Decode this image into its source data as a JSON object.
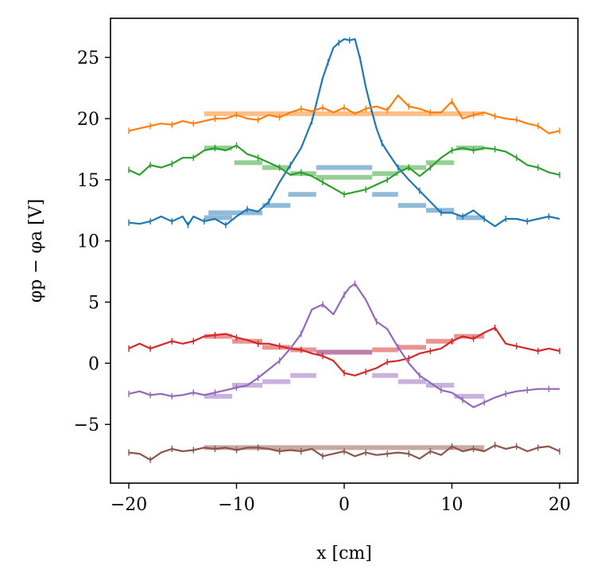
{
  "chart_data": {
    "type": "line",
    "title": "",
    "xlabel": "x [cm]",
    "ylabel": "φp − φa [V]",
    "xlim": [
      -21.7,
      21.7
    ],
    "ylim": [
      -9.8,
      28.2
    ],
    "xticks": [
      -20,
      -10,
      0,
      10,
      20
    ],
    "xtick_labels": [
      "−20",
      "−10",
      "0",
      "10",
      "20"
    ],
    "yticks": [
      -5,
      0,
      5,
      10,
      15,
      20,
      25
    ],
    "ytick_labels": [
      "−5",
      "0",
      "5",
      "10",
      "15",
      "20",
      "25"
    ],
    "grid": false,
    "legend": "none",
    "series": [
      {
        "name": "blue",
        "color": "#1f77b4",
        "x": [
          -20,
          -19,
          -18,
          -17,
          -16,
          -15,
          -14.5,
          -14,
          -13,
          -12,
          -11,
          -10,
          -9,
          -8,
          -7,
          -6,
          -5,
          -4,
          -3,
          -2,
          -1.5,
          -1,
          -0.5,
          0,
          0.5,
          1,
          1.5,
          2,
          2.5,
          3,
          3.5,
          4,
          5,
          6,
          7,
          8,
          9,
          10,
          11,
          12,
          13,
          14,
          15,
          16,
          17,
          18,
          19,
          20
        ],
        "y": [
          11.5,
          11.4,
          11.6,
          12.0,
          11.6,
          12.0,
          11.3,
          12.0,
          11.6,
          11.8,
          11.3,
          12.0,
          12.6,
          12.4,
          13.2,
          14.8,
          16.2,
          17.6,
          19.8,
          23.3,
          24.6,
          25.8,
          26.2,
          26.5,
          26.4,
          26.5,
          24.8,
          22.6,
          20.8,
          19.2,
          18.0,
          17.3,
          16.0,
          15.0,
          14.1,
          13.2,
          12.3,
          12.3,
          12.0,
          12.5,
          11.8,
          11.2,
          11.8,
          11.8,
          11.6,
          11.8,
          12.0,
          11.8
        ]
      },
      {
        "name": "orange",
        "color": "#ff7f0e",
        "x": [
          -20,
          -19,
          -18,
          -17,
          -16,
          -15,
          -14,
          -13,
          -12,
          -11,
          -10,
          -9,
          -8,
          -7,
          -6,
          -5,
          -4,
          -3,
          -2,
          -1,
          0,
          1,
          2,
          3,
          4,
          5,
          6,
          7,
          8,
          9,
          10,
          11,
          12,
          13,
          14,
          15,
          16,
          17,
          18,
          19,
          20
        ],
        "y": [
          19.0,
          19.2,
          19.4,
          19.6,
          19.5,
          19.8,
          19.6,
          19.8,
          20.0,
          20.0,
          20.3,
          20.0,
          19.9,
          20.3,
          20.1,
          20.5,
          20.8,
          20.6,
          20.9,
          20.5,
          20.9,
          20.4,
          20.8,
          21.0,
          20.7,
          21.9,
          21.0,
          20.8,
          20.5,
          20.5,
          21.4,
          20.0,
          20.3,
          20.5,
          20.2,
          20.0,
          19.9,
          19.6,
          19.4,
          18.8,
          19.0
        ]
      },
      {
        "name": "green",
        "color": "#2ca02c",
        "x": [
          -20,
          -19,
          -18,
          -17,
          -16,
          -15,
          -14,
          -13,
          -12,
          -11,
          -10,
          -9,
          -8,
          -7,
          -6,
          -5,
          -4,
          -3,
          -2,
          -1,
          0,
          1,
          2,
          3,
          4,
          5,
          6,
          7,
          8,
          9,
          10,
          11,
          12,
          13,
          14,
          15,
          16,
          17,
          18,
          19,
          20
        ],
        "y": [
          15.8,
          15.4,
          16.2,
          16.0,
          16.3,
          16.8,
          16.8,
          17.4,
          17.6,
          17.4,
          17.8,
          17.1,
          16.8,
          16.4,
          16.0,
          15.4,
          15.6,
          15.3,
          14.8,
          14.3,
          13.8,
          14.0,
          14.2,
          14.6,
          15.0,
          15.6,
          16.0,
          15.3,
          16.0,
          16.8,
          17.4,
          17.6,
          17.4,
          17.6,
          17.5,
          17.3,
          16.8,
          16.2,
          16.0,
          15.6,
          15.4
        ]
      },
      {
        "name": "red",
        "color": "#d62728",
        "x": [
          -20,
          -19,
          -18,
          -17,
          -16,
          -15,
          -14,
          -13,
          -12,
          -11,
          -10,
          -9,
          -8,
          -7,
          -6,
          -5,
          -4,
          -3,
          -2,
          -1,
          0,
          1,
          2,
          3,
          4,
          5,
          6,
          7,
          8,
          9,
          10,
          11,
          12,
          13,
          14,
          15,
          16,
          17,
          18,
          19,
          20
        ],
        "y": [
          1.2,
          1.6,
          1.2,
          1.5,
          1.8,
          1.6,
          1.8,
          2.2,
          2.3,
          2.4,
          2.1,
          1.9,
          1.6,
          1.6,
          1.4,
          1.2,
          1.1,
          0.8,
          0.6,
          0.2,
          -0.8,
          -1.0,
          -0.7,
          -0.4,
          0.1,
          0.2,
          0.4,
          0.8,
          1.0,
          1.2,
          1.8,
          2.2,
          2.0,
          2.5,
          2.9,
          1.6,
          1.4,
          1.2,
          1.0,
          1.2,
          1.0
        ]
      },
      {
        "name": "purple",
        "color": "#9467bd",
        "x": [
          -20,
          -19,
          -18,
          -17,
          -16,
          -15,
          -14,
          -13,
          -12,
          -11,
          -10,
          -9,
          -8,
          -7,
          -6,
          -5,
          -4,
          -3,
          -2,
          -1,
          0,
          0.5,
          1,
          2,
          3,
          4,
          5,
          6,
          7,
          8,
          9,
          10,
          11,
          12,
          13,
          14,
          15,
          16,
          17,
          18,
          19,
          20
        ],
        "y": [
          -2.5,
          -2.3,
          -2.6,
          -2.5,
          -2.7,
          -2.6,
          -2.4,
          -2.6,
          -2.4,
          -2.2,
          -2.0,
          -1.8,
          -1.2,
          -0.5,
          0.2,
          1.2,
          2.4,
          4.4,
          4.8,
          4.0,
          5.6,
          6.2,
          6.5,
          5.2,
          3.4,
          2.8,
          1.3,
          0.0,
          -1.0,
          -1.6,
          -2.2,
          -2.4,
          -3.0,
          -3.6,
          -3.2,
          -2.8,
          -2.5,
          -2.3,
          -2.2,
          -2.1,
          -2.1,
          -2.1
        ]
      },
      {
        "name": "brown",
        "color": "#8c564b",
        "x": [
          -20,
          -19,
          -18,
          -17,
          -16,
          -15,
          -14,
          -13,
          -12,
          -11,
          -10,
          -9,
          -8,
          -7,
          -6,
          -5,
          -4,
          -3,
          -2,
          -1,
          0,
          1,
          2,
          3,
          4,
          5,
          6,
          7,
          8,
          9,
          10,
          11,
          12,
          13,
          14,
          15,
          16,
          17,
          18,
          19,
          20
        ],
        "y": [
          -7.3,
          -7.4,
          -7.9,
          -7.3,
          -7.0,
          -7.2,
          -7.1,
          -6.9,
          -7.0,
          -6.9,
          -7.1,
          -6.9,
          -6.9,
          -7.0,
          -7.2,
          -7.1,
          -7.2,
          -7.0,
          -7.6,
          -7.4,
          -7.2,
          -7.6,
          -7.3,
          -7.5,
          -7.4,
          -7.3,
          -7.4,
          -7.8,
          -7.2,
          -7.5,
          -6.8,
          -7.2,
          -7.0,
          -7.2,
          -6.7,
          -7.0,
          -6.8,
          -7.2,
          -6.9,
          -6.8,
          -7.2
        ]
      }
    ],
    "step_fits": [
      {
        "name": "blue-fit",
        "color": "#1f77b4",
        "segments": [
          [
            -13,
            -10.4,
            11.9
          ],
          [
            -12.6,
            -7.6,
            12.3
          ],
          [
            -7.6,
            -5.0,
            12.9
          ],
          [
            -5.2,
            -2.6,
            13.8
          ],
          [
            -2.6,
            2.6,
            16.0
          ],
          [
            2.6,
            5.0,
            13.8
          ],
          [
            5.0,
            7.6,
            12.9
          ],
          [
            7.6,
            10.2,
            12.5
          ],
          [
            10.4,
            13.0,
            11.9
          ]
        ]
      },
      {
        "name": "orange-fit",
        "color": "#ff7f0e",
        "segments": [
          [
            -13,
            13,
            20.4
          ]
        ]
      },
      {
        "name": "green-fit",
        "color": "#2ca02c",
        "segments": [
          [
            -13,
            -10.4,
            17.6
          ],
          [
            -10.2,
            -7.6,
            16.4
          ],
          [
            -7.6,
            -5.0,
            16.0
          ],
          [
            -5.0,
            -2.6,
            15.5
          ],
          [
            -2.6,
            2.6,
            15.2
          ],
          [
            2.6,
            5.0,
            15.5
          ],
          [
            5.0,
            7.6,
            16.0
          ],
          [
            7.6,
            10.2,
            16.4
          ],
          [
            10.4,
            13.0,
            17.6
          ]
        ]
      },
      {
        "name": "red-fit",
        "color": "#d62728",
        "segments": [
          [
            -13,
            -10.4,
            2.2
          ],
          [
            -10.4,
            -7.6,
            1.8
          ],
          [
            -7.6,
            -5.0,
            1.3
          ],
          [
            -5.0,
            -2.6,
            1.1
          ],
          [
            -2.6,
            2.6,
            0.9
          ],
          [
            2.6,
            5.0,
            1.1
          ],
          [
            5.0,
            7.6,
            1.3
          ],
          [
            7.6,
            10.2,
            1.8
          ],
          [
            10.2,
            13.0,
            2.2
          ]
        ]
      },
      {
        "name": "purple-fit",
        "color": "#9467bd",
        "segments": [
          [
            -13,
            -10.4,
            -2.7
          ],
          [
            -10.4,
            -7.6,
            -1.8
          ],
          [
            -7.6,
            -5.0,
            -1.5
          ],
          [
            -5.0,
            -2.6,
            -1.0
          ],
          [
            -2.6,
            2.6,
            0.9
          ],
          [
            2.6,
            5.0,
            -1.0
          ],
          [
            5.0,
            7.6,
            -1.5
          ],
          [
            7.6,
            10.2,
            -1.8
          ],
          [
            10.2,
            13.0,
            -2.7
          ]
        ]
      },
      {
        "name": "brown-fit",
        "color": "#8c564b",
        "segments": [
          [
            -13,
            13,
            -6.9
          ]
        ]
      }
    ]
  }
}
